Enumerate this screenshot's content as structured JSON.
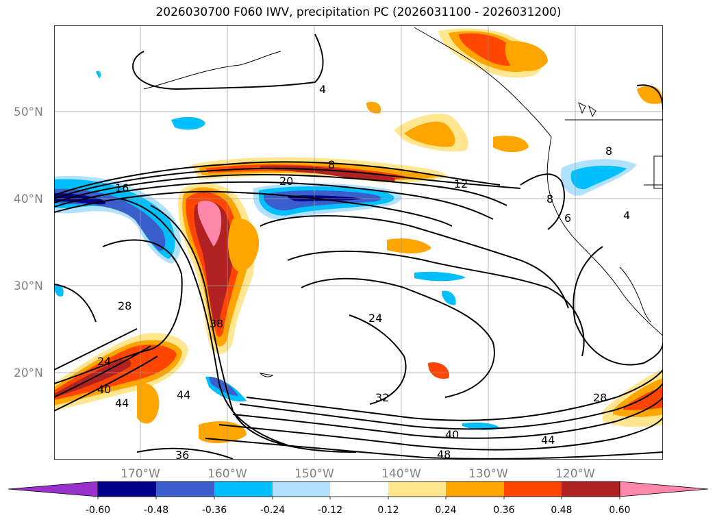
{
  "title": "2026030700 F060 IWV, precipitation PC (2026031100 - 2026031200)",
  "lat_labels": [
    "50°N",
    "40°N",
    "30°N",
    "20°N"
  ],
  "lon_labels": [
    "170°W",
    "160°W",
    "150°W",
    "140°W",
    "130°W",
    "120°W"
  ],
  "colorbar": {
    "ticks": [
      "-0.60",
      "-0.48",
      "-0.36",
      "-0.24",
      "-0.12",
      "0.12",
      "0.24",
      "0.36",
      "0.48",
      "0.60"
    ],
    "colors": [
      "#9932cc",
      "#00008b",
      "#3a5fcd",
      "#00bfff",
      "#b0e2ff",
      "#ffffff",
      "#ffe68f",
      "#ffa500",
      "#ff4500",
      "#b22222",
      "#ff88aa"
    ]
  },
  "contour_labels": [
    "4",
    "8",
    "12",
    "16",
    "20",
    "24",
    "24",
    "28",
    "28",
    "32",
    "36",
    "38",
    "40",
    "40",
    "44",
    "44",
    "44",
    "48",
    "8",
    "6",
    "4",
    "8"
  ],
  "colors": {
    "frame": "#000000",
    "grid": "#999999",
    "label": "#808080"
  }
}
